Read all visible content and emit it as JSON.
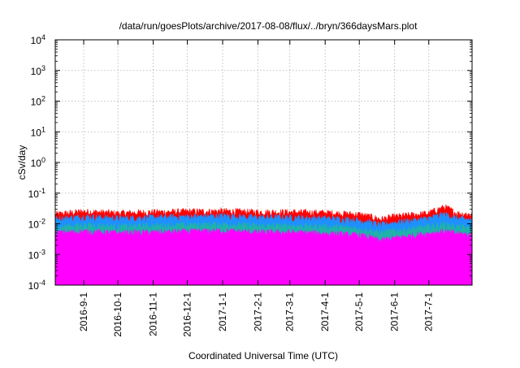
{
  "chart_data": {
    "type": "area",
    "title": "/data/run/goesPlots/archive/2017-08-08/flux/../bryn/366daysMars.plot",
    "xlabel": "Coordinated Universal Time (UTC)",
    "ylabel": "cSv/day",
    "yscale": "log",
    "ylim": [
      0.0001,
      10000
    ],
    "xlim": [
      "2016-08-07",
      "2017-08-08"
    ],
    "grid": true,
    "y_ticks": [
      {
        "value": 0.0001,
        "base": "10",
        "exp": "-4"
      },
      {
        "value": 0.001,
        "base": "10",
        "exp": "-3"
      },
      {
        "value": 0.01,
        "base": "10",
        "exp": "-2"
      },
      {
        "value": 0.1,
        "base": "10",
        "exp": "-1"
      },
      {
        "value": 1,
        "base": "10",
        "exp": "0"
      },
      {
        "value": 10,
        "base": "10",
        "exp": "1"
      },
      {
        "value": 100,
        "base": "10",
        "exp": "2"
      },
      {
        "value": 1000,
        "base": "10",
        "exp": "3"
      },
      {
        "value": 10000,
        "base": "10",
        "exp": "4"
      }
    ],
    "x_ticks": [
      {
        "date": "2016-09-01",
        "label": "2016-9-1"
      },
      {
        "date": "2016-10-01",
        "label": "2016-10-1"
      },
      {
        "date": "2016-11-01",
        "label": "2016-11-1"
      },
      {
        "date": "2016-12-01",
        "label": "2016-12-1"
      },
      {
        "date": "2017-01-01",
        "label": "2017-1-1"
      },
      {
        "date": "2017-02-01",
        "label": "2017-2-1"
      },
      {
        "date": "2017-03-01",
        "label": "2017-3-1"
      },
      {
        "date": "2017-04-01",
        "label": "2017-4-1"
      },
      {
        "date": "2017-05-01",
        "label": "2017-5-1"
      },
      {
        "date": "2017-06-01",
        "label": "2017-6-1"
      },
      {
        "date": "2017-07-01",
        "label": "2017-7-1"
      }
    ],
    "series": [
      {
        "color": "#ff0000",
        "x": [
          "2016-08-07",
          "2016-09-01",
          "2016-10-01",
          "2016-11-01",
          "2016-12-01",
          "2017-01-01",
          "2017-02-01",
          "2017-03-01",
          "2017-04-01",
          "2017-05-01",
          "2017-05-20",
          "2017-06-01",
          "2017-06-20",
          "2017-07-01",
          "2017-07-15",
          "2017-07-25",
          "2017-08-08"
        ],
        "y": [
          0.02,
          0.025,
          0.022,
          0.024,
          0.025,
          0.026,
          0.024,
          0.024,
          0.023,
          0.02,
          0.014,
          0.017,
          0.02,
          0.022,
          0.035,
          0.022,
          0.02
        ]
      },
      {
        "color": "#1e90ff",
        "x": [
          "2016-08-07",
          "2016-09-01",
          "2016-10-01",
          "2016-11-01",
          "2016-12-01",
          "2017-01-01",
          "2017-02-01",
          "2017-03-01",
          "2017-04-01",
          "2017-05-01",
          "2017-05-20",
          "2017-06-01",
          "2017-06-20",
          "2017-07-01",
          "2017-07-15",
          "2017-07-25",
          "2017-08-08"
        ],
        "y": [
          0.014,
          0.017,
          0.015,
          0.016,
          0.017,
          0.018,
          0.016,
          0.016,
          0.015,
          0.013,
          0.009,
          0.011,
          0.013,
          0.015,
          0.02,
          0.015,
          0.013
        ]
      },
      {
        "color": "#20b2aa",
        "x": [
          "2016-08-07",
          "2016-09-01",
          "2016-10-01",
          "2016-11-01",
          "2016-12-01",
          "2017-01-01",
          "2017-02-01",
          "2017-03-01",
          "2017-04-01",
          "2017-05-01",
          "2017-05-20",
          "2017-06-01",
          "2017-06-20",
          "2017-07-01",
          "2017-07-15",
          "2017-07-25",
          "2017-08-08"
        ],
        "y": [
          0.0075,
          0.009,
          0.008,
          0.0085,
          0.009,
          0.0095,
          0.0085,
          0.0085,
          0.008,
          0.007,
          0.005,
          0.006,
          0.007,
          0.008,
          0.0095,
          0.008,
          0.007
        ]
      },
      {
        "color": "#ff00ff",
        "x": [
          "2016-08-07",
          "2016-09-01",
          "2016-10-01",
          "2016-11-01",
          "2016-12-01",
          "2017-01-01",
          "2017-02-01",
          "2017-03-01",
          "2017-04-01",
          "2017-05-01",
          "2017-05-20",
          "2017-06-01",
          "2017-06-20",
          "2017-07-01",
          "2017-07-15",
          "2017-07-25",
          "2017-08-08"
        ],
        "y": [
          0.005,
          0.0055,
          0.005,
          0.0052,
          0.0055,
          0.0058,
          0.0052,
          0.0052,
          0.0048,
          0.0042,
          0.0028,
          0.0034,
          0.0042,
          0.0048,
          0.0055,
          0.0048,
          0.0042
        ]
      }
    ]
  }
}
